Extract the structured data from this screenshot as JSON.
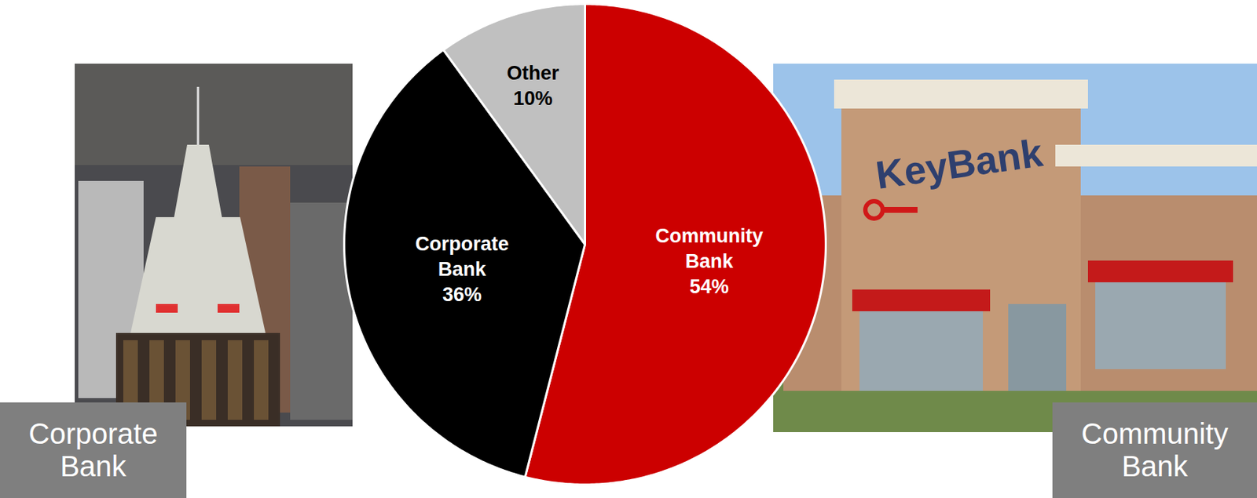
{
  "chart_data": {
    "type": "pie",
    "categories": [
      "Community Bank",
      "Corporate Bank",
      "Other"
    ],
    "values": [
      54,
      36,
      10
    ],
    "value_labels": [
      "54%",
      "36%",
      "10%"
    ],
    "colors": [
      "#cc0000",
      "#000000",
      "#c0c0c0"
    ],
    "data_labels": true,
    "annotations": [
      "Corporate Bank",
      "Community Bank",
      "KeyBank"
    ]
  }
}
